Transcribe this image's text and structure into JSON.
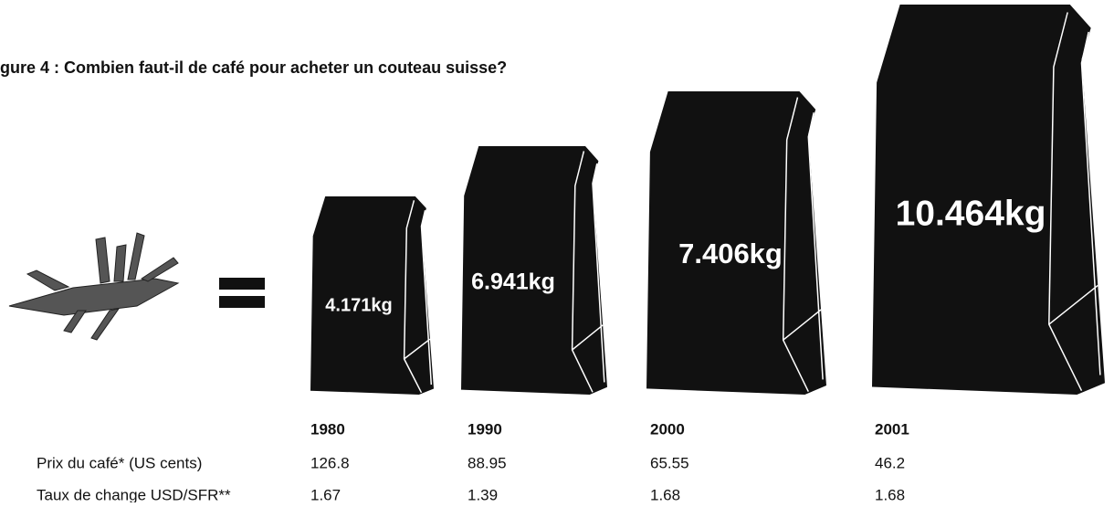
{
  "title": "gure 4 : Combien faut-il de café pour acheter un couteau suisse?",
  "bags": [
    {
      "label": "4.171kg"
    },
    {
      "label": "6.941kg"
    },
    {
      "label": "7.406kg"
    },
    {
      "label": "10.464kg"
    }
  ],
  "years": [
    "1980",
    "1990",
    "2000",
    "2001"
  ],
  "rows": [
    {
      "label": "Prix du café* (US cents)",
      "values": [
        126.8,
        88.95,
        65.55,
        46.2
      ]
    },
    {
      "label": "Taux de change USD/SFR**",
      "values": [
        1.67,
        1.39,
        1.68,
        1.68
      ]
    }
  ]
}
